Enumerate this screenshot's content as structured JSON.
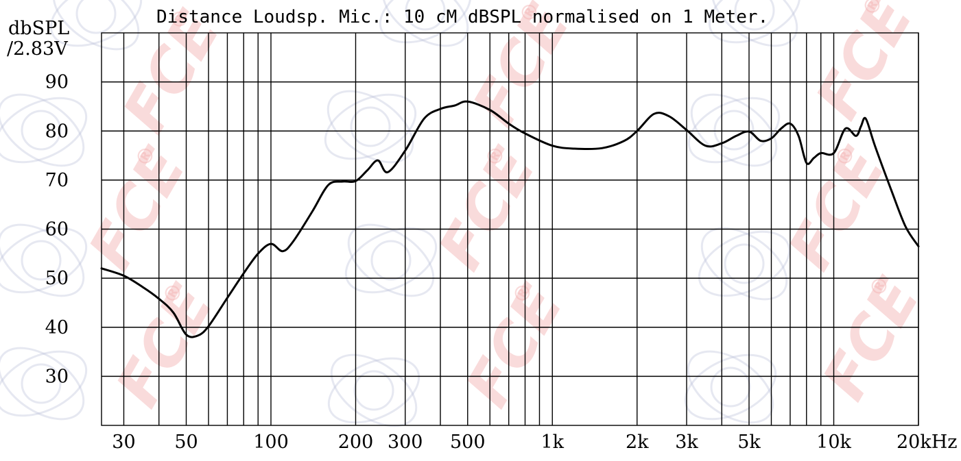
{
  "chart_data": {
    "type": "line",
    "title": "Distance Loudsp. Mic.: 10 cM dBSPL normalised on 1 Meter.",
    "ylabel_line1": "dbSPL",
    "ylabel_line2": "/2.83V",
    "xlabel": "",
    "x_scale": "log",
    "xlim": [
      25,
      20000
    ],
    "ylim": [
      20,
      100
    ],
    "grid": true,
    "x_ticks": [
      {
        "value": 30,
        "label": "30"
      },
      {
        "value": 50,
        "label": "50"
      },
      {
        "value": 100,
        "label": "100"
      },
      {
        "value": 200,
        "label": "200"
      },
      {
        "value": 300,
        "label": "300"
      },
      {
        "value": 500,
        "label": "500"
      },
      {
        "value": 1000,
        "label": "1k"
      },
      {
        "value": 2000,
        "label": "2k"
      },
      {
        "value": 3000,
        "label": "3k"
      },
      {
        "value": 5000,
        "label": "5k"
      },
      {
        "value": 10000,
        "label": "10k"
      },
      {
        "value": 20000,
        "label": "20kHz"
      }
    ],
    "y_ticks": [
      {
        "value": 30,
        "label": "30"
      },
      {
        "value": 40,
        "label": "40"
      },
      {
        "value": 50,
        "label": "50"
      },
      {
        "value": 60,
        "label": "60"
      },
      {
        "value": 70,
        "label": "70"
      },
      {
        "value": 80,
        "label": "80"
      },
      {
        "value": 90,
        "label": "90"
      }
    ],
    "x_gridlines": [
      30,
      40,
      50,
      60,
      70,
      80,
      90,
      100,
      200,
      300,
      400,
      500,
      600,
      700,
      800,
      900,
      1000,
      2000,
      3000,
      4000,
      5000,
      6000,
      7000,
      8000,
      9000,
      10000,
      20000
    ],
    "y_gridlines": [
      30,
      40,
      50,
      60,
      70,
      80,
      90
    ],
    "series": [
      {
        "color": "#000000",
        "x": [
          25,
          30,
          35,
          40,
          45,
          50,
          55,
          60,
          70,
          80,
          90,
          100,
          110,
          120,
          140,
          160,
          180,
          200,
          220,
          240,
          260,
          300,
          350,
          400,
          450,
          500,
          600,
          700,
          800,
          1000,
          1200,
          1500,
          1800,
          2000,
          2300,
          2600,
          3000,
          3500,
          4000,
          4500,
          5000,
          5500,
          6000,
          6500,
          7000,
          7500,
          8000,
          8500,
          9000,
          10000,
          11000,
          12000,
          12500,
          13000,
          14000,
          16000,
          18000,
          20000
        ],
        "y": [
          52,
          50.5,
          48.2,
          45.8,
          43,
          38.5,
          38.3,
          40.2,
          46,
          51,
          55,
          57,
          55.5,
          57.5,
          63.5,
          69,
          69.7,
          69.8,
          72,
          74,
          71.6,
          76,
          82.5,
          84.5,
          85.2,
          86,
          84.3,
          81.5,
          79.5,
          77,
          76.4,
          76.5,
          78,
          80,
          83.5,
          83,
          80.2,
          77,
          77.5,
          79,
          79.9,
          78,
          78.5,
          80.5,
          81.5,
          79,
          73.5,
          74.5,
          75.5,
          75.5,
          80.5,
          79,
          81,
          82.5,
          77,
          68,
          60.5,
          56.5
        ]
      }
    ]
  },
  "watermark": {
    "text": "FCE",
    "mark": "®",
    "color": "#f3b0b0",
    "emblem_color": "#b8bcd8"
  }
}
